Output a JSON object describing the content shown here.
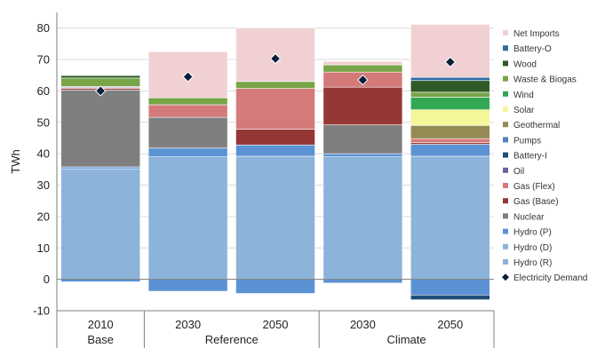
{
  "chart_data": {
    "type": "bar",
    "stacked": true,
    "ylabel": "TWh",
    "ylim": [
      -10,
      85
    ],
    "yticks": [
      -10,
      0,
      10,
      20,
      30,
      40,
      50,
      60,
      70,
      80
    ],
    "grid": true,
    "legend_position": "right",
    "categories": [
      "2010",
      "2030",
      "2050",
      "2030",
      "2050"
    ],
    "groups": [
      {
        "label": "Base",
        "categories": [
          0
        ]
      },
      {
        "label": "Reference",
        "categories": [
          1,
          2
        ]
      },
      {
        "label": "Climate",
        "categories": [
          3,
          4
        ]
      }
    ],
    "legend": [
      "Net Imports",
      "Battery-O",
      "Wood",
      "Waste & Biogas",
      "Wind",
      "Solar",
      "Geothermal",
      "Pumps",
      "Battery-I",
      "Oil",
      "Gas (Flex)",
      "Gas (Base)",
      "Nuclear",
      "Hydro (P)",
      "Hydro (D)",
      "Hydro (R)",
      "Electricity Demand"
    ],
    "series": [
      {
        "name": "Hydro (R)",
        "color": "#8cb3d9",
        "values": [
          35.2,
          39.0,
          39.2,
          39.0,
          39.2
        ]
      },
      {
        "name": "Hydro (D)",
        "color": "#8cb3d9",
        "values": [
          0,
          0,
          0,
          0,
          0
        ]
      },
      {
        "name": "Hydro (P)",
        "color": "#5b92d4",
        "values": [
          0.6,
          2.8,
          3.6,
          1.0,
          3.8
        ]
      },
      {
        "name": "Nuclear",
        "color": "#7f7f7f",
        "values": [
          24.5,
          9.8,
          0,
          9.2,
          0
        ]
      },
      {
        "name": "Gas (Base)",
        "color": "#953735",
        "values": [
          0.5,
          0,
          5.0,
          12.0,
          0.6
        ]
      },
      {
        "name": "Gas (Flex)",
        "color": "#d47a7a",
        "values": [
          0.3,
          4.0,
          13.0,
          4.8,
          1.2
        ]
      },
      {
        "name": "Oil",
        "color": "#7060a0",
        "values": [
          0.3,
          0,
          0,
          0,
          0
        ]
      },
      {
        "name": "Battery-I",
        "color": "#1f4e79",
        "values": [
          0,
          0,
          0,
          0,
          0
        ]
      },
      {
        "name": "Pumps",
        "color": "#4f81bd",
        "values": [
          0,
          0,
          0,
          0,
          0
        ]
      },
      {
        "name": "Geothermal",
        "color": "#948a54",
        "values": [
          0,
          0,
          0,
          0,
          4.2
        ]
      },
      {
        "name": "Solar",
        "color": "#f5f59a",
        "values": [
          0,
          0,
          0,
          0,
          5.0
        ]
      },
      {
        "name": "Wind",
        "color": "#33a853",
        "values": [
          0,
          0,
          0,
          0,
          4.0
        ]
      },
      {
        "name": "Waste & Biogas",
        "color": "#77a547",
        "values": [
          2.7,
          2.2,
          2.2,
          2.3,
          1.6
        ]
      },
      {
        "name": "Wood",
        "color": "#2e5a27",
        "values": [
          0.8,
          0,
          0,
          0,
          3.7
        ]
      },
      {
        "name": "Battery-O",
        "color": "#2e6da4",
        "values": [
          0,
          0,
          0,
          0,
          1.0
        ]
      },
      {
        "name": "Net Imports",
        "color": "#f1d0d3",
        "values": [
          0,
          14.7,
          17.0,
          1.1,
          16.9
        ]
      }
    ],
    "negative_series": [
      {
        "name": "Hydro (P)",
        "color": "#5b92d4",
        "values": [
          -0.8,
          -3.8,
          -4.5,
          -1.2,
          -5.0
        ]
      },
      {
        "name": "Battery-I",
        "color": "#1f4e79",
        "values": [
          0,
          0,
          0,
          0,
          -1.5
        ]
      }
    ],
    "demand": {
      "name": "Electricity Demand",
      "values": [
        60.0,
        64.5,
        70.3,
        63.5,
        69.2
      ]
    }
  }
}
